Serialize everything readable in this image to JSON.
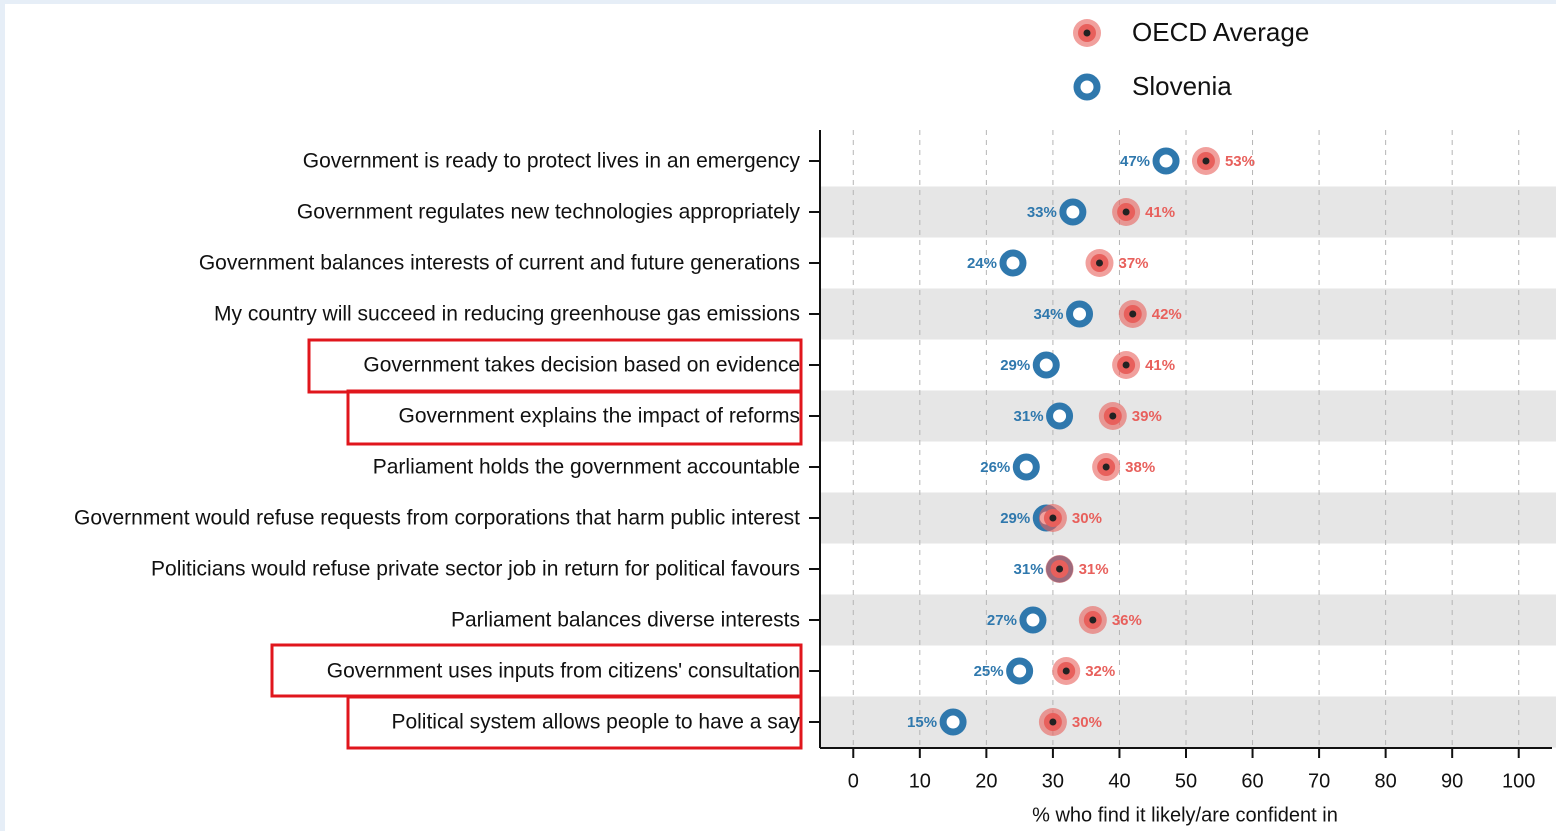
{
  "chart_data": {
    "type": "dot",
    "categories": [
      "Government is ready to protect lives in an emergency",
      "Government regulates new technologies appropriately",
      "Government balances interests of current and future generations",
      "My country will succeed in reducing greenhouse gas emissions",
      "Government takes decision based on evidence",
      "Government explains the impact of reforms",
      "Parliament holds the government accountable",
      "Government would refuse requests from corporations that harm public interest",
      "Politicians would refuse private sector job in return for political favours",
      "Parliament balances diverse interests",
      "Government uses inputs from citizens' consultation",
      "Political system allows people to have a say"
    ],
    "series": [
      {
        "name": "OECD Average",
        "color": "#e8605c",
        "values": [
          53,
          41,
          37,
          42,
          41,
          39,
          38,
          30,
          31,
          36,
          32,
          30
        ],
        "value_labels": [
          "53%",
          "41%",
          "37%",
          "42%",
          "41%",
          "39%",
          "38%",
          "30%",
          "31%",
          "36%",
          "32%",
          "30%"
        ]
      },
      {
        "name": "Slovenia",
        "color": "#2f78ad",
        "values": [
          47,
          33,
          24,
          34,
          29,
          31,
          26,
          29,
          31,
          27,
          25,
          15
        ],
        "value_labels": [
          "47%",
          "33%",
          "24%",
          "34%",
          "29%",
          "31%",
          "26%",
          "29%",
          "31%",
          "27%",
          "25%",
          "15%"
        ]
      }
    ],
    "xlabel": "% who find it likely/are confident in",
    "xlim": [
      -5,
      105
    ],
    "xticks": [
      0,
      10,
      20,
      30,
      40,
      50,
      60,
      70,
      80,
      90,
      100
    ],
    "grid": true
  }
}
